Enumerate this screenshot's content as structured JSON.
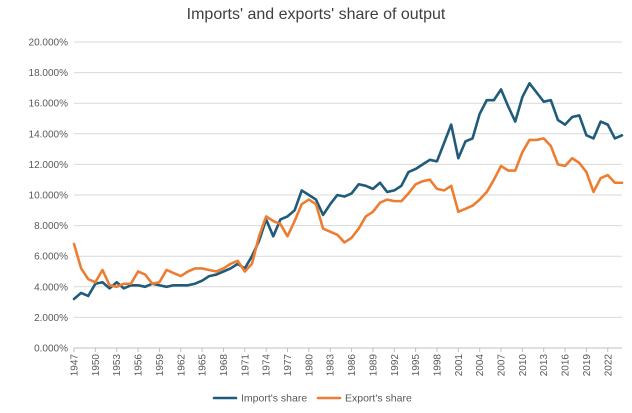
{
  "chart_data": {
    "type": "line",
    "title": "Imports' and exports' share of output",
    "xlabel": "",
    "ylabel": "",
    "ylim": [
      0,
      0.2
    ],
    "y_ticks": [
      0,
      0.02,
      0.04,
      0.06,
      0.08,
      0.1,
      0.12,
      0.14,
      0.16,
      0.18,
      0.2
    ],
    "y_tick_labels": [
      "0.000%",
      "2.000%",
      "4.000%",
      "6.000%",
      "8.000%",
      "10.000%",
      "12.000%",
      "14.000%",
      "16.000%",
      "18.000%",
      "20.000%"
    ],
    "x": [
      1947,
      1948,
      1949,
      1950,
      1951,
      1952,
      1953,
      1954,
      1955,
      1956,
      1957,
      1958,
      1959,
      1960,
      1961,
      1962,
      1963,
      1964,
      1965,
      1966,
      1967,
      1968,
      1969,
      1970,
      1971,
      1972,
      1973,
      1974,
      1975,
      1976,
      1977,
      1978,
      1979,
      1980,
      1981,
      1982,
      1983,
      1984,
      1985,
      1986,
      1987,
      1988,
      1989,
      1990,
      1991,
      1992,
      1993,
      1994,
      1995,
      1996,
      1997,
      1998,
      1999,
      2000,
      2001,
      2002,
      2003,
      2004,
      2005,
      2006,
      2007,
      2008,
      2009,
      2010,
      2011,
      2012,
      2013,
      2014,
      2015,
      2016,
      2017,
      2018,
      2019,
      2020,
      2021,
      2022,
      2023,
      2024
    ],
    "x_tick_labels": [
      "1947",
      "1950",
      "1953",
      "1956",
      "1959",
      "1962",
      "1965",
      "1968",
      "1971",
      "1974",
      "1977",
      "1980",
      "1983",
      "1986",
      "1989",
      "1992",
      "1995",
      "1998",
      "2001",
      "2004",
      "2007",
      "2010",
      "2013",
      "2016",
      "2019",
      "2022"
    ],
    "grid": true,
    "legend_position": "bottom",
    "series": [
      {
        "name": "Import's share",
        "color": "#1f5b7a",
        "values": [
          0.032,
          0.036,
          0.034,
          0.042,
          0.043,
          0.039,
          0.043,
          0.039,
          0.041,
          0.041,
          0.04,
          0.042,
          0.041,
          0.04,
          0.041,
          0.041,
          0.041,
          0.042,
          0.044,
          0.047,
          0.048,
          0.05,
          0.052,
          0.055,
          0.052,
          0.06,
          0.07,
          0.084,
          0.073,
          0.084,
          0.086,
          0.09,
          0.103,
          0.1,
          0.097,
          0.087,
          0.094,
          0.1,
          0.099,
          0.101,
          0.107,
          0.106,
          0.104,
          0.108,
          0.102,
          0.103,
          0.106,
          0.115,
          0.117,
          0.12,
          0.123,
          0.122,
          0.134,
          0.146,
          0.124,
          0.135,
          0.137,
          0.153,
          0.162,
          0.162,
          0.169,
          0.158,
          0.148,
          0.164,
          0.173,
          0.167,
          0.161,
          0.162,
          0.149,
          0.146,
          0.151,
          0.152,
          0.139,
          0.137,
          0.148,
          0.146,
          0.137,
          0.139
        ]
      },
      {
        "name": "Export's share",
        "color": "#ed7d31",
        "values": [
          0.068,
          0.052,
          0.045,
          0.043,
          0.051,
          0.041,
          0.04,
          0.042,
          0.042,
          0.05,
          0.048,
          0.042,
          0.043,
          0.051,
          0.049,
          0.047,
          0.05,
          0.052,
          0.052,
          0.051,
          0.05,
          0.052,
          0.055,
          0.057,
          0.05,
          0.055,
          0.073,
          0.086,
          0.083,
          0.081,
          0.073,
          0.083,
          0.094,
          0.097,
          0.094,
          0.078,
          0.076,
          0.074,
          0.069,
          0.072,
          0.078,
          0.086,
          0.089,
          0.095,
          0.097,
          0.096,
          0.096,
          0.101,
          0.107,
          0.109,
          0.11,
          0.104,
          0.103,
          0.106,
          0.089,
          0.091,
          0.093,
          0.097,
          0.102,
          0.11,
          0.119,
          0.116,
          0.116,
          0.128,
          0.136,
          0.136,
          0.137,
          0.132,
          0.12,
          0.119,
          0.124,
          0.121,
          0.115,
          0.102,
          0.111,
          0.113,
          0.108,
          0.108
        ]
      }
    ]
  }
}
